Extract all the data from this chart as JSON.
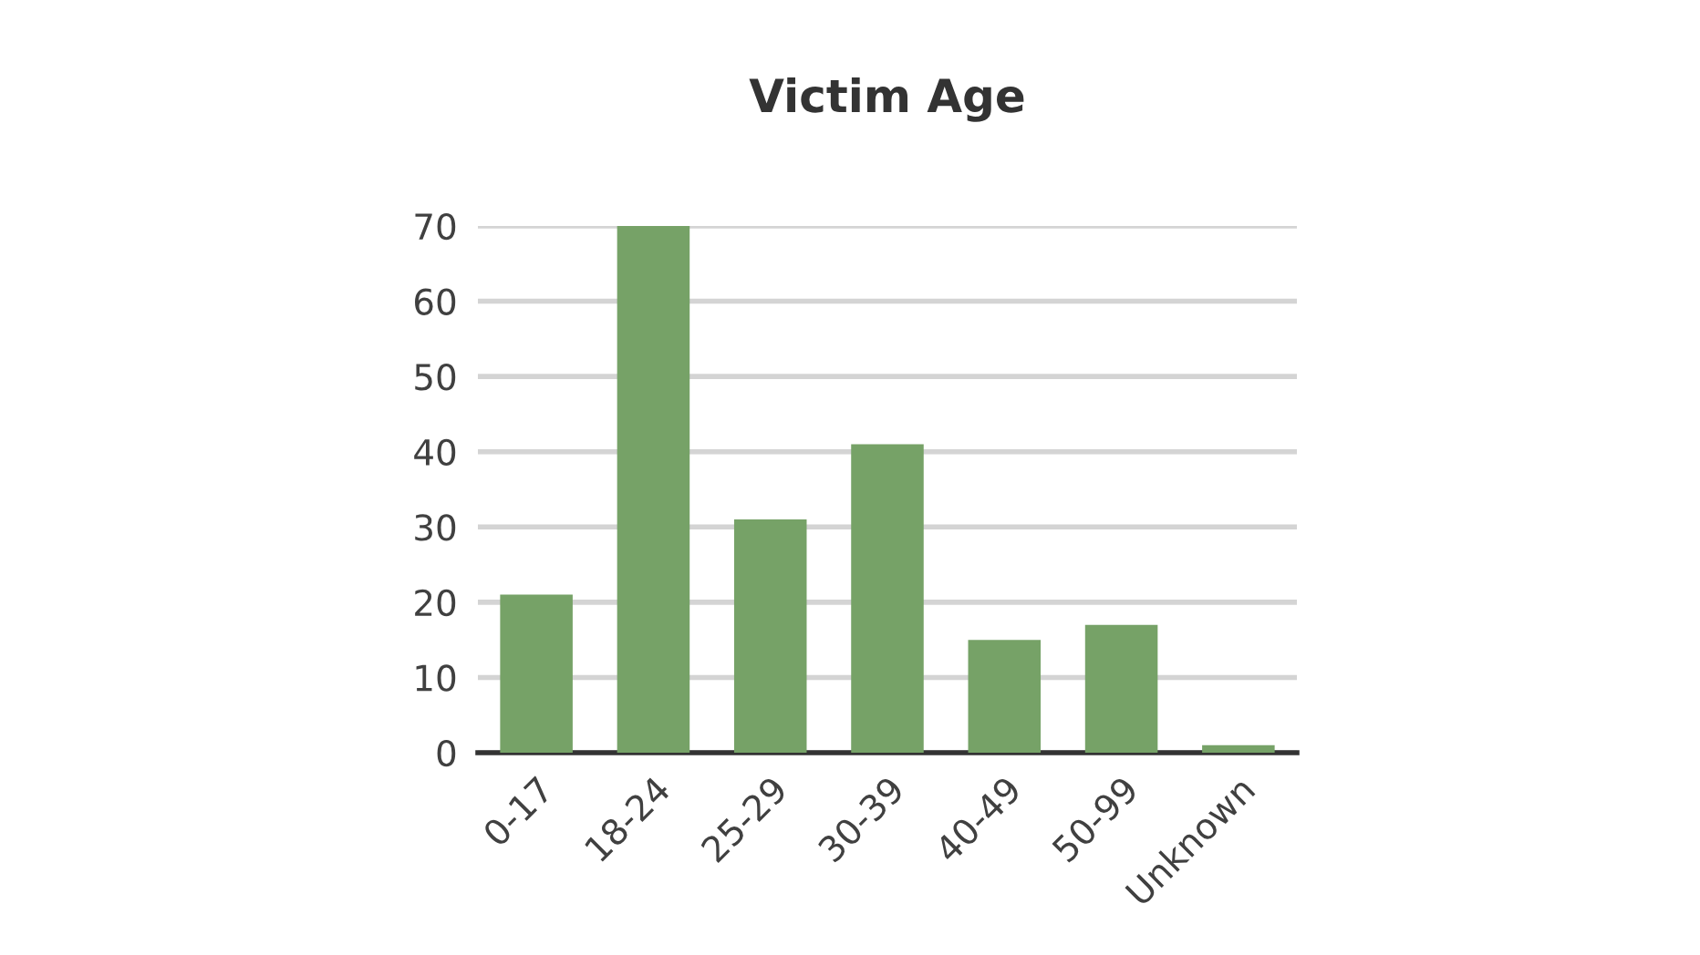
{
  "chart_data": {
    "type": "bar",
    "title": "Victim Age",
    "categories": [
      "0-17",
      "18-24",
      "25-29",
      "30-39",
      "40-49",
      "50-99",
      "Unknown"
    ],
    "values": [
      21,
      70,
      31,
      41,
      15,
      17,
      1
    ],
    "color": "#76a267",
    "ylim": [
      0,
      70
    ],
    "yticks": [
      0,
      10,
      20,
      30,
      40,
      50,
      60,
      70
    ],
    "grid": "y"
  }
}
